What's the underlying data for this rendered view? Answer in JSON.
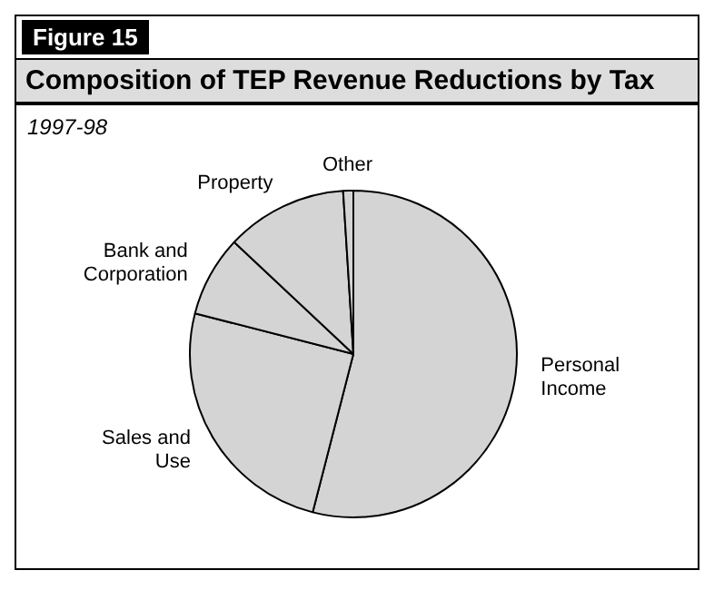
{
  "chart_data": {
    "type": "pie",
    "title": "Composition of TEP Revenue Reductions by Tax",
    "subtitle": "1997-98",
    "annotations": [
      "Figure 15"
    ],
    "categories": [
      "Personal Income",
      "Sales and Use",
      "Bank and Corporation",
      "Property",
      "Other"
    ],
    "values": [
      54,
      25,
      8,
      12,
      1
    ],
    "colors": [
      "#d4d4d4",
      "#d4d4d4",
      "#d4d4d4",
      "#d4d4d4",
      "#d4d4d4"
    ],
    "legend": false
  }
}
